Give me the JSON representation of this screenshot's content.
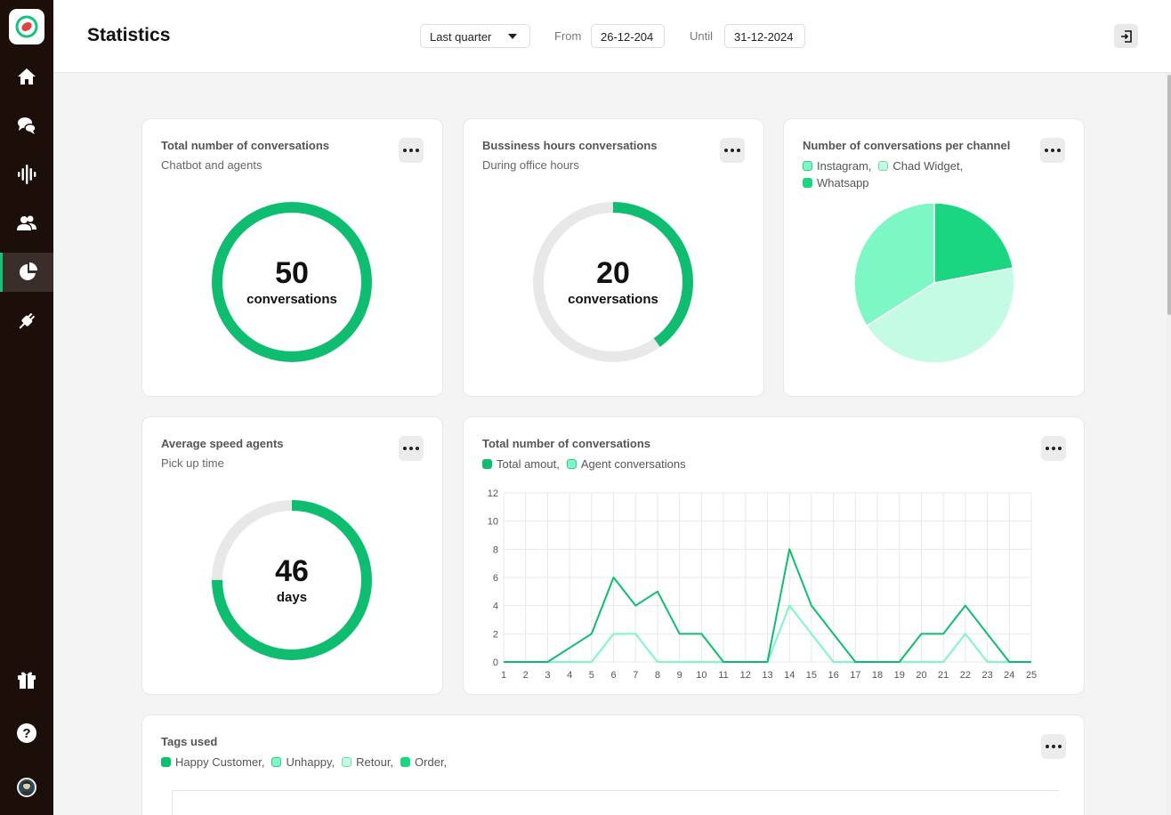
{
  "app": {
    "title": "Statistics"
  },
  "colors": {
    "accent": "#0fbd70",
    "light": "#7df7c3",
    "lighter": "#c4fbe3",
    "mid": "#1ad681",
    "sidebar": "#1c0f0a"
  },
  "sidebar": {
    "items": [
      {
        "name": "home-icon"
      },
      {
        "name": "chat-icon"
      },
      {
        "name": "waveform-icon"
      },
      {
        "name": "contacts-icon"
      },
      {
        "name": "statistics-icon",
        "active": true
      },
      {
        "name": "plug-icon"
      }
    ],
    "bottom": [
      {
        "name": "gift-icon"
      },
      {
        "name": "help-icon"
      }
    ]
  },
  "header": {
    "period": "Last quarter",
    "from_label": "From",
    "from_value": "26-12-204",
    "until_label": "Until",
    "until_value": "31-12-2024"
  },
  "cards": {
    "total": {
      "title": "Total number of conversations",
      "subtitle": "Chatbot and agents",
      "value": "50",
      "unit": "conversations",
      "fraction": 1.0
    },
    "business": {
      "title": "Bussiness hours conversations",
      "subtitle": "During office hours",
      "value": "20",
      "unit": "conversations",
      "fraction": 0.4
    },
    "channel": {
      "title": "Number of conversations per channel",
      "legend": [
        {
          "label": "Instagram,",
          "color": "#7df7c3"
        },
        {
          "label": "Chad Widget,",
          "color": "#c4fbe3"
        },
        {
          "label": "Whatsapp",
          "color": "#1ad681"
        }
      ]
    },
    "speed": {
      "title": "Average speed agents",
      "subtitle": "Pick up time",
      "value": "46",
      "unit": "days",
      "fraction": 0.75
    },
    "line": {
      "title": "Total number of conversations",
      "legend": [
        {
          "label": "Total amout,",
          "color": "#0fbd70"
        },
        {
          "label": "Agent conversations",
          "color": "#7df7c3"
        }
      ]
    },
    "tags": {
      "title": "Tags used",
      "legend": [
        {
          "label": "Happy Customer,",
          "color": "#0fbd70"
        },
        {
          "label": "Unhappy,",
          "color": "#7df7c3"
        },
        {
          "label": "Retour,",
          "color": "#c4fbe3"
        },
        {
          "label": "Order,",
          "color": "#1ad681"
        }
      ]
    }
  },
  "chart_data": [
    {
      "type": "pie",
      "title": "Number of conversations per channel",
      "labels": [
        "Whatsapp",
        "Chad Widget",
        "Instagram"
      ],
      "values": [
        22,
        44,
        34
      ],
      "colors": [
        "#1ad681",
        "#c4fbe3",
        "#7df7c3"
      ]
    },
    {
      "type": "line",
      "title": "Total number of conversations",
      "x": [
        1,
        2,
        3,
        4,
        5,
        6,
        7,
        8,
        9,
        10,
        11,
        12,
        13,
        14,
        15,
        16,
        17,
        18,
        19,
        20,
        21,
        22,
        23,
        24,
        25
      ],
      "ylim": [
        0,
        12
      ],
      "yticks": [
        0,
        2,
        4,
        6,
        8,
        10,
        12
      ],
      "series": [
        {
          "name": "Total amout",
          "color": "#0fbd70",
          "values": [
            0,
            0,
            0,
            1,
            2,
            6,
            4,
            5,
            2,
            2,
            0,
            0,
            0,
            8,
            4,
            2,
            0,
            0,
            0,
            2,
            2,
            4,
            2,
            0,
            0
          ]
        },
        {
          "name": "Agent conversations",
          "color": "#7df7c3",
          "values": [
            0,
            0,
            0,
            0,
            0,
            2,
            2,
            0,
            0,
            0,
            0,
            0,
            0,
            4,
            2,
            0,
            0,
            0,
            0,
            0,
            0,
            2,
            0,
            0,
            0
          ]
        }
      ]
    }
  ]
}
